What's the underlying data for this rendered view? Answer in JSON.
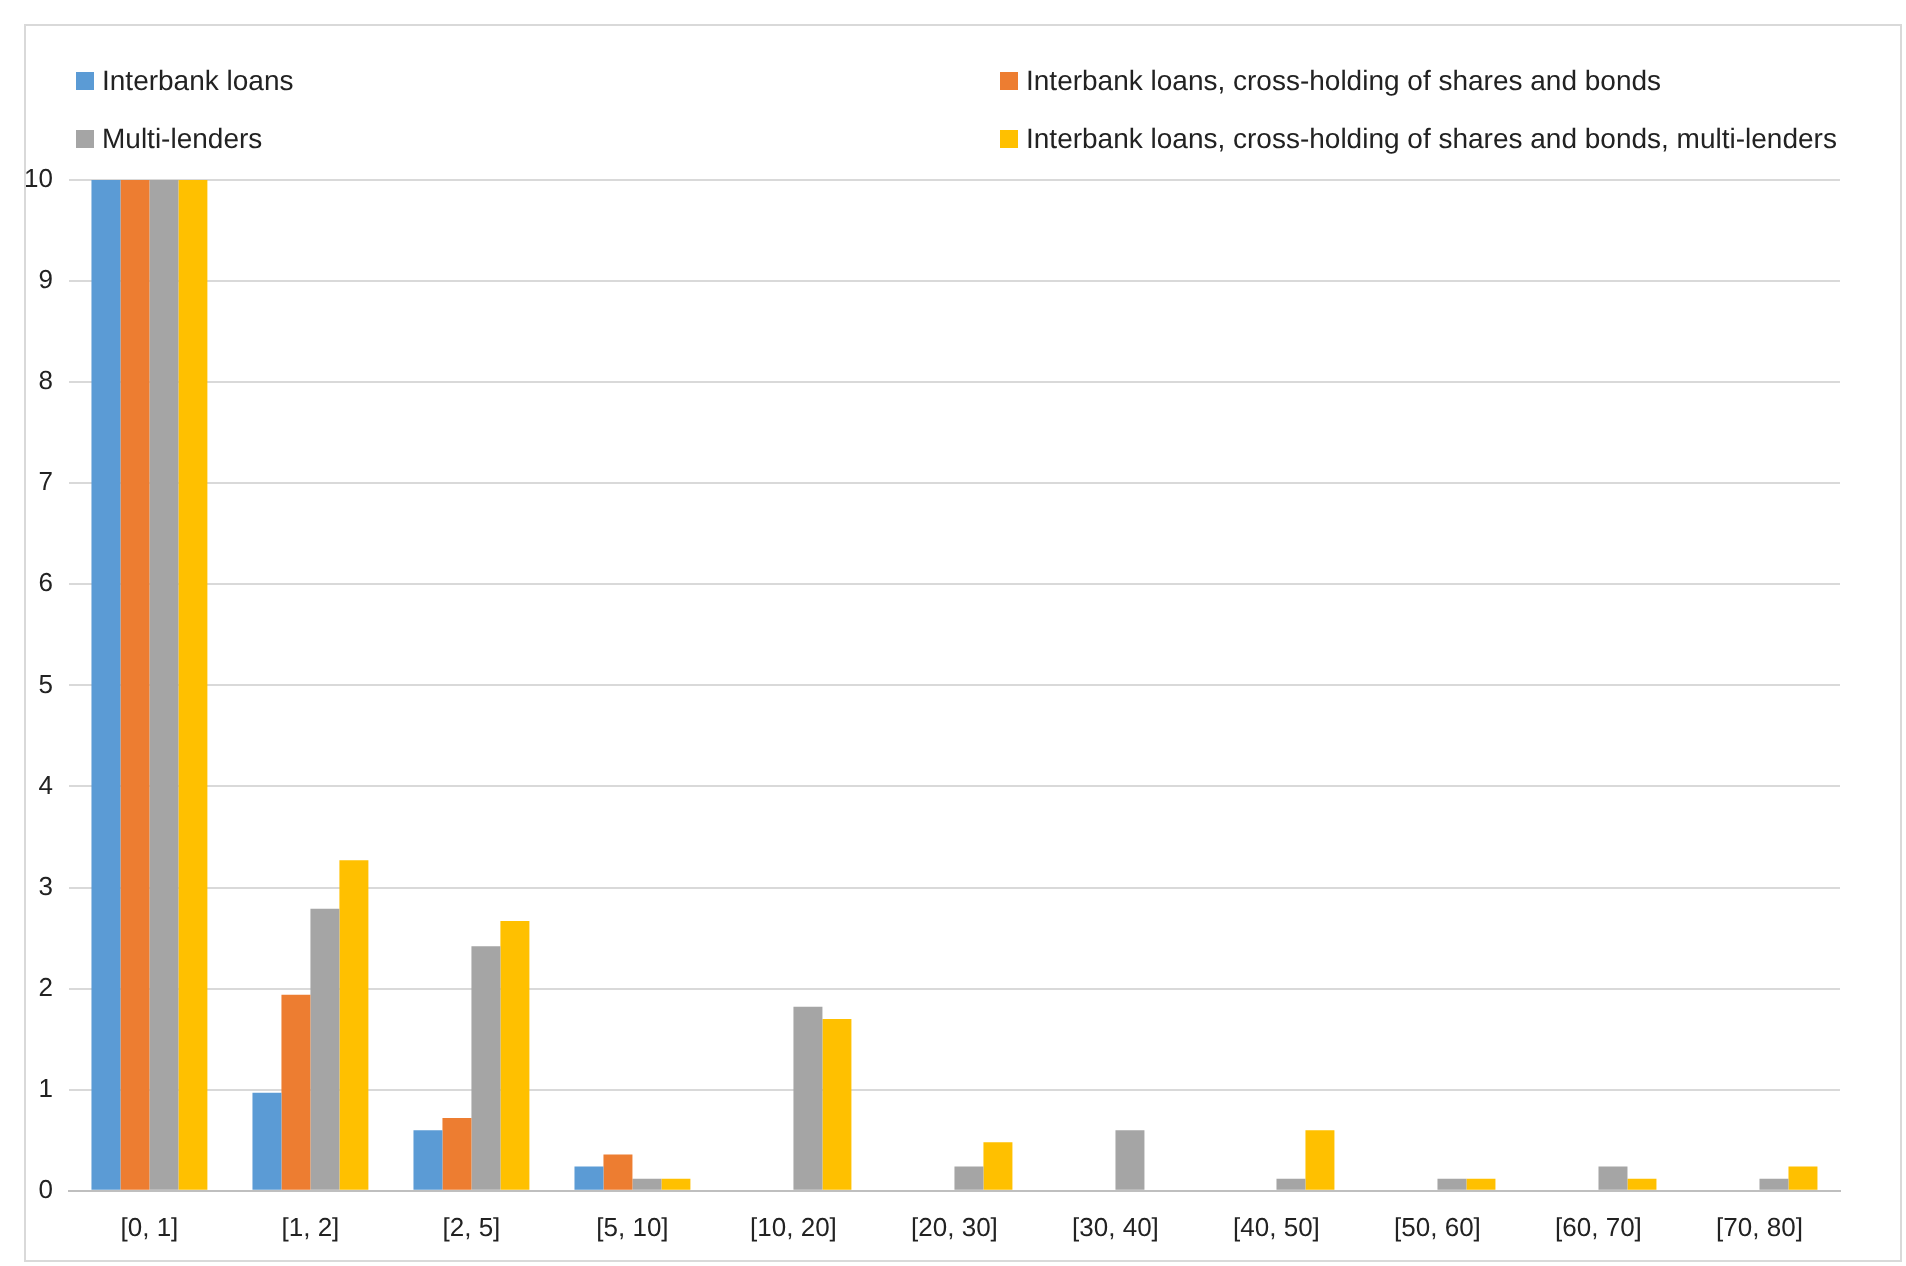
{
  "chart_data": {
    "type": "bar",
    "categories": [
      "[0, 1]",
      "[1, 2]",
      "[2, 5]",
      "[5, 10]",
      "[10, 20]",
      "[20, 30]",
      "[30, 40]",
      "[40, 50]",
      "[50, 60]",
      "[60, 70]",
      "[70, 80]"
    ],
    "series": [
      {
        "name": "Interbank loans",
        "color": "#5b9bd5",
        "values": [
          10,
          0.97,
          0.6,
          0.24,
          0,
          0,
          0,
          0,
          0,
          0,
          0
        ]
      },
      {
        "name": "Interbank loans, cross-holding of shares and bonds",
        "color": "#ed7d31",
        "values": [
          10,
          1.94,
          0.72,
          0.36,
          0,
          0,
          0,
          0,
          0,
          0,
          0
        ]
      },
      {
        "name": "Multi-lenders",
        "color": "#a5a5a5",
        "values": [
          10,
          2.79,
          2.42,
          0.12,
          1.82,
          0.24,
          0.6,
          0.12,
          0.12,
          0.24,
          0.12
        ]
      },
      {
        "name": "Interbank loans, cross-holding of shares and bonds, multi-lenders",
        "color": "#ffc000",
        "values": [
          10,
          3.27,
          2.67,
          0.12,
          1.7,
          0.48,
          0,
          0.6,
          0.12,
          0.12,
          0.24
        ]
      }
    ],
    "ylim": [
      0,
      10
    ],
    "yticks": [
      0,
      1,
      2,
      3,
      4,
      5,
      6,
      7,
      8,
      9,
      10
    ],
    "grid": "y",
    "legend": "top"
  }
}
